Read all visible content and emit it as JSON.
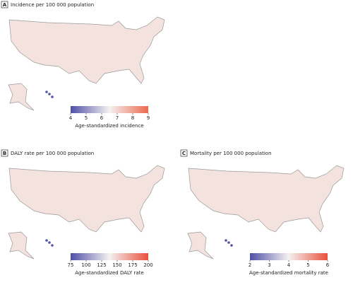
{
  "panels": [
    {
      "letter": "A",
      "title": "Incidence per 100 000 population",
      "colorbar": {
        "lim": [
          4,
          9
        ],
        "ticks": [
          4,
          5,
          6,
          7,
          8,
          9
        ],
        "label": "Age-standardized incidence",
        "colors": [
          "#4f4fa6",
          "#f4f1f1",
          "#ec6a50"
        ]
      }
    },
    {
      "letter": "B",
      "title": "DALY rate per 100 000 population",
      "colorbar": {
        "lim": [
          75,
          200
        ],
        "ticks": [
          75,
          100,
          125,
          150,
          175,
          200
        ],
        "label": "Age-standardized DALY rate",
        "colors": [
          "#4f4fa6",
          "#f4f1f1",
          "#e8503c"
        ]
      }
    },
    {
      "letter": "C",
      "title": "Mortality per 100 000 population",
      "colorbar": {
        "lim": [
          2,
          6
        ],
        "ticks": [
          2,
          3,
          4,
          5,
          6
        ],
        "label": "Age-standardized mortality rate",
        "colors": [
          "#4f4fa6",
          "#f4f1f1",
          "#e8503c"
        ]
      }
    }
  ]
}
